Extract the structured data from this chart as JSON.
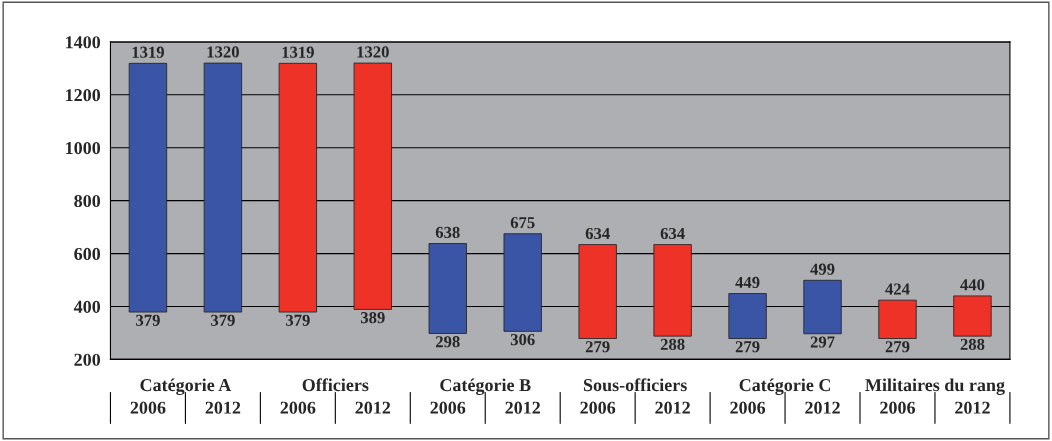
{
  "chart_data": {
    "type": "bar",
    "categories": [
      "2006",
      "2012",
      "2006",
      "2012",
      "2006",
      "2012",
      "2006",
      "2012",
      "2006",
      "2012",
      "2006",
      "2012"
    ],
    "base": [
      379,
      379,
      379,
      389,
      298,
      306,
      279,
      288,
      279,
      297,
      279,
      288
    ],
    "values": [
      940,
      941,
      940,
      931,
      340,
      369,
      355,
      346,
      170,
      202,
      145,
      152
    ],
    "value_labels": [
      "1319",
      "1320",
      "1319",
      "1320",
      "638",
      "675",
      "634",
      "634",
      "449",
      "499",
      "424",
      "440"
    ],
    "colors": [
      "#3a55a5",
      "#3a55a5",
      "#ee3228",
      "#ee3228",
      "#3a55a5",
      "#3a55a5",
      "#ee3228",
      "#ee3228",
      "#3a55a5",
      "#3a55a5",
      "#ee3228",
      "#ee3228"
    ],
    "ylim": [
      200,
      1400
    ],
    "yticks": [
      200,
      400,
      600,
      800,
      1000,
      1200,
      1400
    ],
    "grid": "y",
    "annotations": [
      "Catégorie A",
      "Officiers",
      "Catégorie B",
      "Sous-officiers",
      "Catégorie C",
      "Militaires du rang",
      "379",
      "379",
      "379",
      "389",
      "298",
      "306",
      "279",
      "288",
      "279",
      "297",
      "279",
      "288"
    ]
  }
}
